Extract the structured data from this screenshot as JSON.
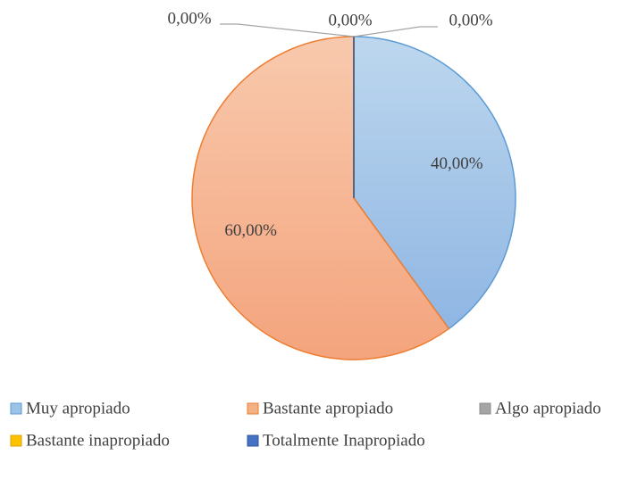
{
  "chart_data": {
    "type": "pie",
    "categories": [
      "Muy apropiado",
      "Bastante apropiado",
      "Algo apropiado",
      "Bastante inapropiado",
      "Totalmente Inapropiado"
    ],
    "values": [
      40,
      60,
      0,
      0,
      0
    ],
    "value_labels": [
      "40,00%",
      "60,00%",
      "0,00%",
      "0,00%",
      "0,00%"
    ],
    "colors": [
      "#9dc3e6",
      "#f4b183",
      "#a5a5a5",
      "#ffc000",
      "#4472c4"
    ],
    "legend": "bottom"
  }
}
